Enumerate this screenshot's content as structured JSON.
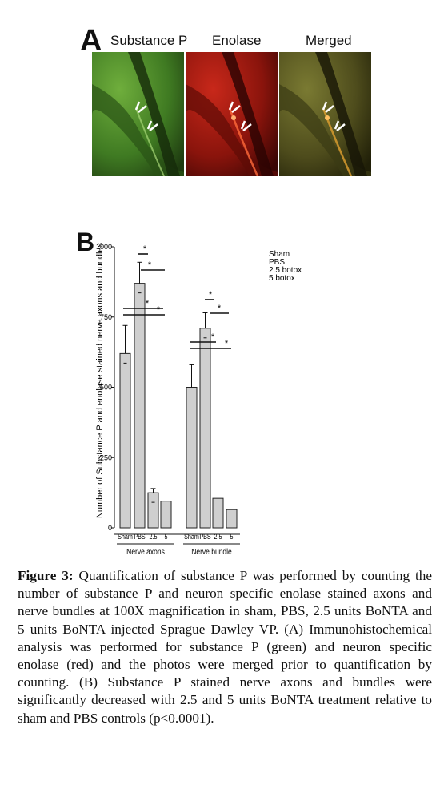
{
  "panel_a": {
    "letter": "A",
    "titles": [
      "Substance P",
      "Enolase",
      "Merged"
    ],
    "colors": {
      "green": "#4f8a2a",
      "red": "#a01a10",
      "merged": "#5b5a24"
    }
  },
  "panel_b": {
    "letter": "B"
  },
  "chart_data": {
    "type": "bar",
    "ylabel": "Number of Substance P and enolase stained nerve axons and bundles",
    "ylim": [
      0,
      1000
    ],
    "yticks": [
      0,
      250,
      500,
      750,
      1000
    ],
    "legend": [
      "Sham",
      "PBS",
      "2.5 botox",
      "5 botox"
    ],
    "legend_position": "top-right",
    "categories": [
      "Sham",
      "PBS",
      "2.5",
      "5"
    ],
    "groups": [
      {
        "name": "Nerve axons",
        "values": [
          620,
          870,
          125,
          95
        ],
        "errors": [
          100,
          75,
          15,
          0
        ]
      },
      {
        "name": "Nerve bundle",
        "values": [
          500,
          710,
          105,
          65
        ],
        "errors": [
          80,
          55,
          0,
          0
        ]
      }
    ],
    "significance_marker": "*"
  },
  "caption": {
    "label": "Figure 3:",
    "text": " Quantification of substance P was performed by counting the number of substance P and neuron specific enolase stained axons and nerve bundles at 100X magnification in sham, PBS, 2.5 units BoNTA and 5 units BoNTA injected Sprague Dawley VP. (A) Immunohistochemical analysis was performed for substance P (green) and neuron specific enolase (red) and the photos were merged prior to quantification by counting. (B) Substance P stained nerve axons and bundles were significantly decreased with 2.5 and 5 units BoNTA treatment relative to sham and PBS controls (p<0.0001)."
  }
}
